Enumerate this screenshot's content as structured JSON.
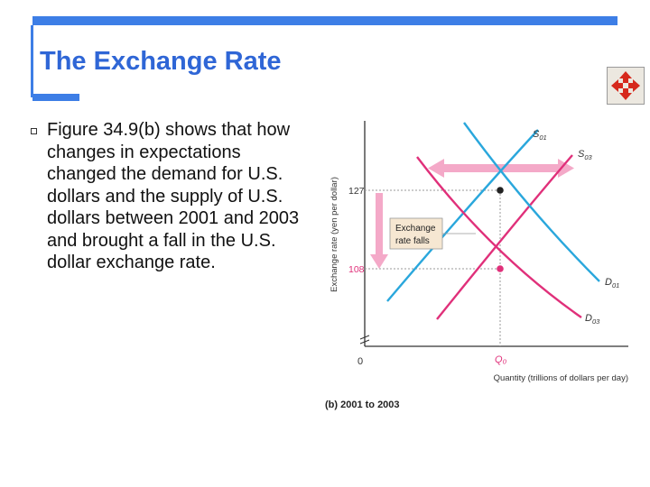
{
  "slide": {
    "title": "The Exchange Rate",
    "body": "Figure 34.9(b) shows that how changes in expectations changed the demand for U.S. dollars and the supply of U.S. dollars between 2001 and 2003 and brought a fall in the U.S. dollar exchange rate."
  },
  "colors": {
    "accent": "#3d7ee6",
    "title": "#2f66d6",
    "series_2001": "#2aa7dc",
    "series_2003": "#e0307a",
    "arrow_fill": "#f4a9c8",
    "label_fill": "#f6e7d2"
  },
  "nav": {
    "icon": "move-arrows-icon"
  },
  "chart_data": {
    "type": "line",
    "caption": "(b) 2001 to 2003",
    "xlabel": "Quantity (trillions of dollars per day)",
    "ylabel": "Exchange rate (yen per dollar)",
    "origin_label": "0",
    "x_tick_label": "Q₀",
    "y_ticks": [
      {
        "value": 127,
        "label": "127"
      },
      {
        "value": 108,
        "label": "108"
      }
    ],
    "annotation": {
      "line1": "Exchange",
      "line2": "rate falls"
    },
    "series": [
      {
        "name": "S₀₁",
        "label_main": "S",
        "label_sub": "01",
        "color": "#2aa7dc",
        "kind": "supply-2001"
      },
      {
        "name": "S₀₃",
        "label_main": "S",
        "label_sub": "03",
        "color": "#e0307a",
        "kind": "supply-2003"
      },
      {
        "name": "D₀₁",
        "label_main": "D",
        "label_sub": "01",
        "color": "#2aa7dc",
        "kind": "demand-2001"
      },
      {
        "name": "D₀₃",
        "label_main": "D",
        "label_sub": "03",
        "color": "#e0307a",
        "kind": "demand-2003"
      }
    ],
    "equilibria": [
      {
        "year": "2001",
        "rate": 127,
        "quantity": "Q₀"
      },
      {
        "year": "2003",
        "rate": 108,
        "quantity": "Q₀"
      }
    ],
    "shifts": [
      {
        "curve": "supply",
        "direction": "right"
      },
      {
        "curve": "demand",
        "direction": "left"
      },
      {
        "curve": "exchange-rate",
        "direction": "down"
      }
    ]
  }
}
